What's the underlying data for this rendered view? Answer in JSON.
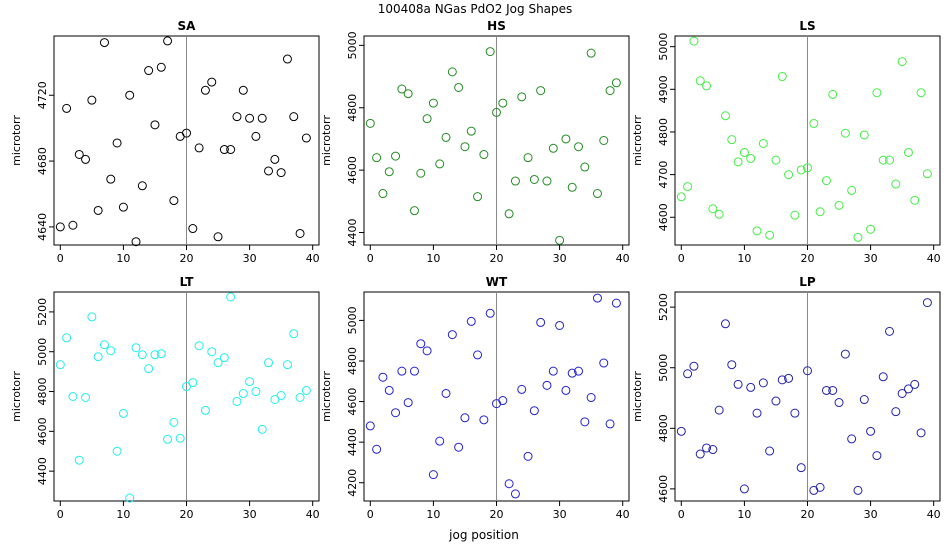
{
  "figure": {
    "title": "100408a   NGas PdO2 Jog Shapes",
    "xlabel": "jog position"
  },
  "chart_data": [
    {
      "type": "scatter",
      "title": "SA",
      "ylabel": "microtorr",
      "color": "#000000",
      "xlim": [
        -1,
        41
      ],
      "ylim": [
        4629,
        4756
      ],
      "xticks": [
        0,
        10,
        20,
        30,
        40
      ],
      "yticks": [
        4640,
        4680,
        4720
      ],
      "vline": 20,
      "x": [
        0,
        1,
        2,
        3,
        4,
        5,
        6,
        7,
        8,
        9,
        10,
        11,
        12,
        13,
        14,
        15,
        16,
        17,
        18,
        19,
        20,
        21,
        22,
        23,
        24,
        25,
        26,
        27,
        28,
        29,
        30,
        31,
        32,
        33,
        34,
        35,
        36,
        37,
        38,
        39
      ],
      "y": [
        4640,
        4712,
        4641,
        4684,
        4681,
        4717,
        4650,
        4752,
        4669,
        4691,
        4652,
        4720,
        4631,
        4665,
        4735,
        4702,
        4737,
        4753,
        4656,
        4695,
        4697,
        4639,
        4688,
        4723,
        4728,
        4634,
        4687,
        4687,
        4707,
        4723,
        4706,
        4695,
        4706,
        4674,
        4681,
        4673,
        4742,
        4707,
        4636,
        4694
      ]
    },
    {
      "type": "scatter",
      "title": "HS",
      "ylabel": "microtorr",
      "color": "#228B22",
      "xlim": [
        -1,
        41
      ],
      "ylim": [
        4360,
        5030
      ],
      "xticks": [
        0,
        10,
        20,
        30,
        40
      ],
      "yticks": [
        4400,
        4600,
        4800,
        5000
      ],
      "vline": 20,
      "x": [
        0,
        1,
        2,
        3,
        4,
        5,
        6,
        7,
        8,
        9,
        10,
        11,
        12,
        13,
        14,
        15,
        16,
        17,
        18,
        19,
        20,
        21,
        22,
        23,
        24,
        25,
        26,
        27,
        28,
        29,
        30,
        31,
        32,
        33,
        34,
        35,
        36,
        37,
        38,
        39
      ],
      "y": [
        4750,
        4640,
        4525,
        4595,
        4645,
        4860,
        4845,
        4470,
        4590,
        4765,
        4815,
        4620,
        4705,
        4915,
        4865,
        4675,
        4725,
        4515,
        4650,
        4980,
        4785,
        4815,
        4460,
        4565,
        4835,
        4640,
        4570,
        4855,
        4565,
        4670,
        4375,
        4700,
        4545,
        4675,
        4610,
        4975,
        4525,
        4695,
        4855,
        4880
      ]
    },
    {
      "type": "scatter",
      "title": "LS",
      "ylabel": "microtorr",
      "color": "#44EE44",
      "xlim": [
        -1,
        41
      ],
      "ylim": [
        4535,
        5025
      ],
      "xticks": [
        0,
        10,
        20,
        30,
        40
      ],
      "yticks": [
        4600,
        4700,
        4800,
        4900,
        5000
      ],
      "vline": 20,
      "x": [
        0,
        1,
        2,
        3,
        4,
        5,
        6,
        7,
        8,
        9,
        10,
        11,
        12,
        13,
        14,
        15,
        16,
        17,
        18,
        19,
        20,
        21,
        22,
        23,
        24,
        25,
        26,
        27,
        28,
        29,
        30,
        31,
        32,
        33,
        34,
        35,
        36,
        37,
        38,
        39
      ],
      "y": [
        4648,
        4672,
        5013,
        4920,
        4908,
        4620,
        4607,
        4838,
        4782,
        4730,
        4752,
        4738,
        4568,
        4773,
        4558,
        4734,
        4930,
        4700,
        4605,
        4711,
        4716,
        4820,
        4613,
        4686,
        4888,
        4628,
        4797,
        4663,
        4553,
        4793,
        4572,
        4892,
        4734,
        4734,
        4678,
        4965,
        4752,
        4640,
        4892,
        4702
      ]
    },
    {
      "type": "scatter",
      "title": "LT",
      "ylabel": "microtorr",
      "color": "#22EEEE",
      "xlim": [
        -1,
        41
      ],
      "ylim": [
        4250,
        5300
      ],
      "xticks": [
        0,
        10,
        20,
        30,
        40
      ],
      "yticks": [
        4400,
        4600,
        4800,
        5000,
        5200
      ],
      "vline": 20,
      "x": [
        0,
        1,
        2,
        3,
        4,
        5,
        6,
        7,
        8,
        9,
        10,
        11,
        12,
        13,
        14,
        15,
        16,
        17,
        18,
        19,
        20,
        21,
        22,
        23,
        24,
        25,
        26,
        27,
        28,
        29,
        30,
        31,
        32,
        33,
        34,
        35,
        36,
        37,
        38,
        39
      ],
      "y": [
        4935,
        5070,
        4775,
        4455,
        4770,
        5175,
        4975,
        5035,
        5005,
        4500,
        4690,
        4265,
        5020,
        4985,
        4915,
        4985,
        4990,
        4560,
        4645,
        4565,
        4825,
        4845,
        5030,
        4705,
        5000,
        4945,
        4970,
        5275,
        4750,
        4790,
        4850,
        4800,
        4610,
        4945,
        4760,
        4780,
        4935,
        5090,
        4770,
        4805
      ]
    },
    {
      "type": "scatter",
      "title": "WT",
      "ylabel": "microtorr",
      "color": "#2222CC",
      "xlim": [
        -1,
        41
      ],
      "ylim": [
        4110,
        5140
      ],
      "xticks": [
        0,
        10,
        20,
        30,
        40
      ],
      "yticks": [
        4200,
        4400,
        4600,
        4800,
        5000
      ],
      "vline": 20,
      "x": [
        0,
        1,
        2,
        3,
        4,
        5,
        6,
        7,
        8,
        9,
        10,
        11,
        12,
        13,
        14,
        15,
        16,
        17,
        18,
        19,
        20,
        21,
        22,
        23,
        24,
        25,
        26,
        27,
        28,
        29,
        30,
        31,
        32,
        33,
        34,
        35,
        36,
        37,
        38,
        39
      ],
      "y": [
        4480,
        4365,
        4720,
        4655,
        4545,
        4750,
        4595,
        4750,
        4885,
        4850,
        4240,
        4405,
        4640,
        4930,
        4375,
        4520,
        4995,
        4830,
        4510,
        5035,
        4590,
        4605,
        4195,
        4145,
        4660,
        4330,
        4555,
        4990,
        4680,
        4750,
        4975,
        4655,
        4740,
        4750,
        4500,
        4620,
        5110,
        4790,
        4490,
        5085
      ]
    },
    {
      "type": "scatter",
      "title": "LP",
      "ylabel": "microtorr",
      "color": "#2222AA",
      "xlim": [
        -1,
        41
      ],
      "ylim": [
        4560,
        5250
      ],
      "xticks": [
        0,
        10,
        20,
        30,
        40
      ],
      "yticks": [
        4600,
        4800,
        5000,
        5200
      ],
      "vline": 20,
      "x": [
        0,
        1,
        2,
        3,
        4,
        5,
        6,
        7,
        8,
        9,
        10,
        11,
        12,
        13,
        14,
        15,
        16,
        17,
        18,
        19,
        20,
        21,
        22,
        23,
        24,
        25,
        26,
        27,
        28,
        29,
        30,
        31,
        32,
        33,
        34,
        35,
        36,
        37,
        38,
        39
      ],
      "y": [
        4790,
        4980,
        5005,
        4715,
        4735,
        4730,
        4860,
        5145,
        5010,
        4945,
        4600,
        4935,
        4850,
        4950,
        4725,
        4890,
        4960,
        4965,
        4850,
        4670,
        4990,
        4595,
        4605,
        4925,
        4925,
        4885,
        5045,
        4765,
        4595,
        4895,
        4790,
        4710,
        4970,
        5120,
        4855,
        4915,
        4930,
        4945,
        4785,
        5215
      ]
    }
  ]
}
